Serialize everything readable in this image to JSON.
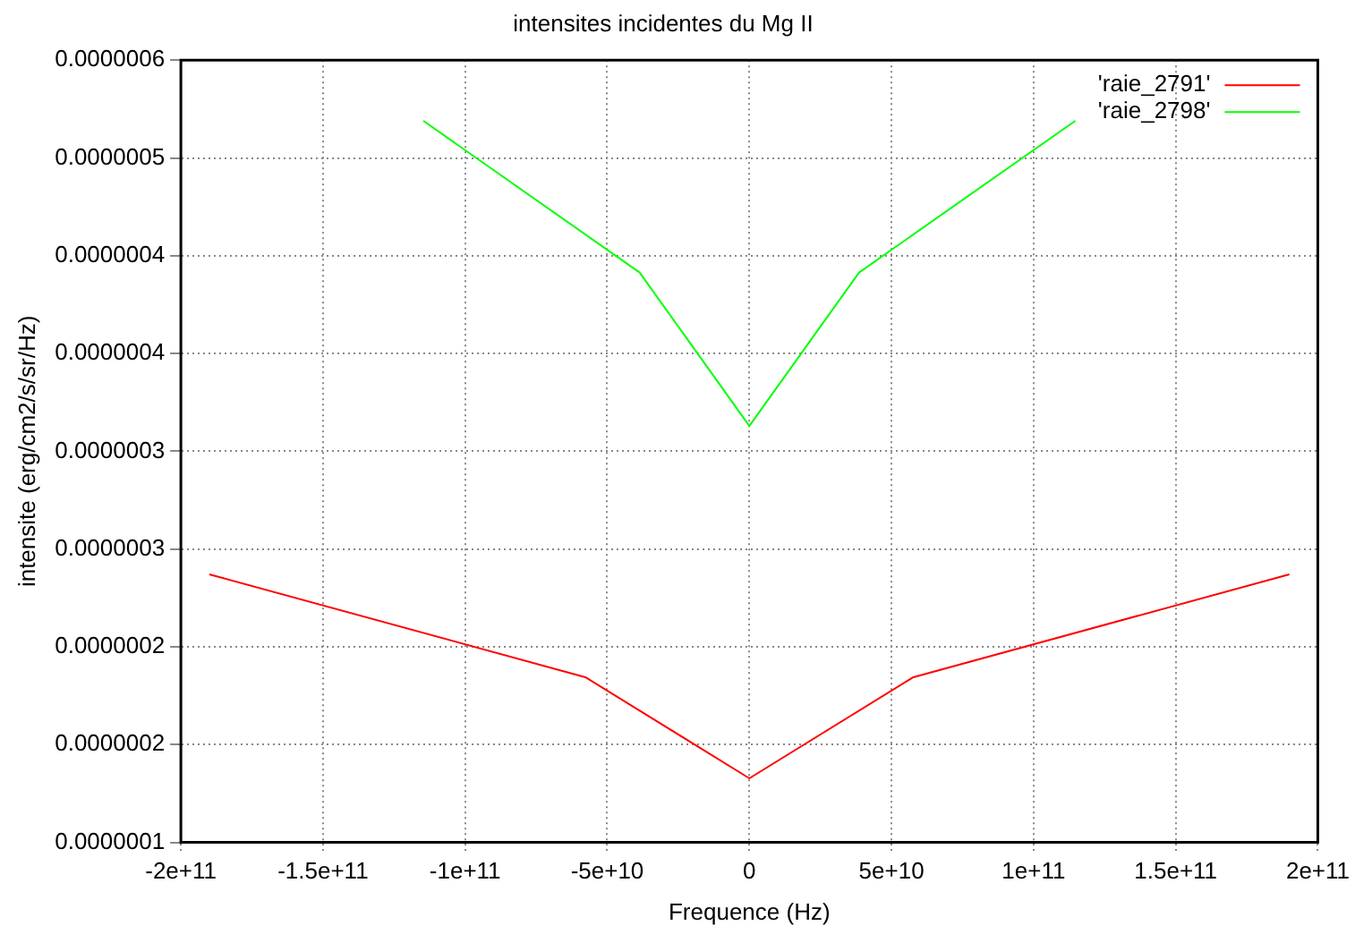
{
  "chart_data": {
    "type": "line",
    "title": "intensites incidentes du Mg II",
    "xlabel": "Frequence (Hz)",
    "ylabel": "intensite (erg/cm2/s/sr/Hz)",
    "xlim": [
      -200000000000.0,
      200000000000.0
    ],
    "xticks": [
      {
        "value": -200000000000.0,
        "label": "-2e+11"
      },
      {
        "value": -150000000000.0,
        "label": "-1.5e+11"
      },
      {
        "value": -100000000000.0,
        "label": "-1e+11"
      },
      {
        "value": -50000000000.0,
        "label": "-5e+10"
      },
      0,
      {
        "value": 50000000000.0,
        "label": "5e+10"
      },
      {
        "value": 100000000000.0,
        "label": "1e+11"
      },
      {
        "value": 150000000000.0,
        "label": "1.5e+11"
      },
      {
        "value": 200000000000.0,
        "label": "2e+11"
      }
    ],
    "ylim": [
      1e-07,
      5.64e-07
    ],
    "yticks": [
      {
        "value": 1e-07,
        "label": "0.0000001"
      },
      {
        "value": 1.58e-07,
        "label": "0.0000002"
      },
      {
        "value": 2.16e-07,
        "label": "0.0000002"
      },
      {
        "value": 2.74e-07,
        "label": "0.0000003"
      },
      {
        "value": 3.32e-07,
        "label": "0.0000003"
      },
      {
        "value": 3.9e-07,
        "label": "0.0000004"
      },
      {
        "value": 4.48e-07,
        "label": "0.0000004"
      },
      {
        "value": 5.06e-07,
        "label": "0.0000005"
      },
      {
        "value": 5.64e-07,
        "label": "0.0000006"
      }
    ],
    "grid": true,
    "legend": "top right",
    "marker": "none",
    "line_style": "solid",
    "series": [
      {
        "name": "'raie_2791'",
        "color": "#ff0000",
        "x": [
          -190000000000.0,
          -57700000000.0,
          0,
          57700000000.0,
          190000000000.0
        ],
        "values": [
          2.59e-07,
          1.98e-07,
          1.38e-07,
          1.98e-07,
          2.59e-07
        ]
      },
      {
        "name": "'raie_2798'",
        "color": "#00ff00",
        "x": [
          -114700000000.0,
          -38600000000.0,
          0,
          38600000000.0,
          114700000000.0
        ],
        "values": [
          5.28e-07,
          4.38e-07,
          3.47e-07,
          4.38e-07,
          5.28e-07
        ]
      }
    ]
  }
}
